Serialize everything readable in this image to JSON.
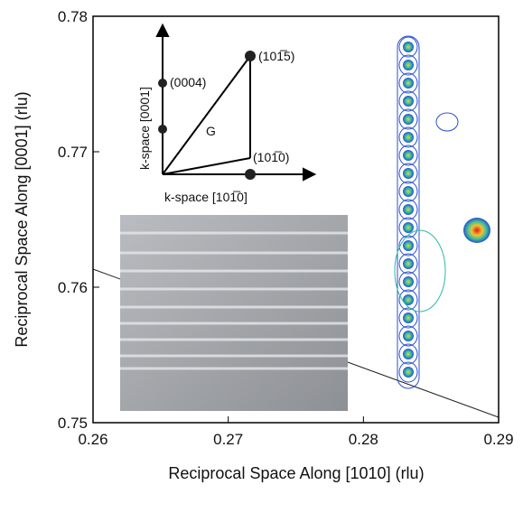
{
  "chart_data": {
    "type": "contour",
    "x_label": "Reciprocal Space Along [1010] (rlu)",
    "y_label": "Reciprocal Space Along [0001] (rlu)",
    "xlim": [
      0.26,
      0.29
    ],
    "xticks": [
      0.26,
      0.27,
      0.28,
      0.29
    ],
    "ylim": [
      0.75,
      0.78
    ],
    "yticks": [
      0.75,
      0.76,
      0.77,
      0.78
    ],
    "inset": {
      "x_axis": "k-space [101̅0]",
      "y_axis": "k-space [0001]",
      "labels": [
        "(0004)",
        "(101̅5)",
        "(101̅0)",
        "G"
      ]
    }
  }
}
